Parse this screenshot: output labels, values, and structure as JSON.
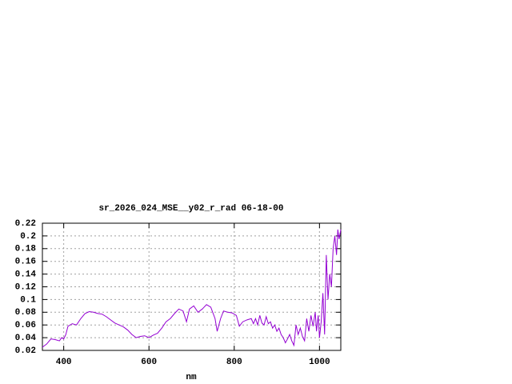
{
  "chart_data": {
    "type": "line",
    "title": "sr_2026_024_MSE__y02_r_rad 06-18-00",
    "x_label": "nm",
    "xlim": [
      350,
      1050
    ],
    "xticks": [
      400,
      600,
      800,
      1000
    ],
    "ylim": [
      0.02,
      0.22
    ],
    "yticks": [
      0.02,
      0.04,
      0.06,
      0.08,
      0.1,
      0.12,
      0.14,
      0.16,
      0.18,
      0.2,
      0.22
    ],
    "grid": true,
    "series": [
      {
        "color": "#9400d3",
        "x": [
          350,
          360,
          370,
          380,
          390,
          395,
          400,
          405,
          410,
          420,
          430,
          440,
          450,
          460,
          470,
          480,
          490,
          500,
          510,
          520,
          530,
          540,
          550,
          560,
          570,
          580,
          590,
          600,
          610,
          620,
          630,
          640,
          650,
          660,
          670,
          680,
          688,
          695,
          705,
          715,
          725,
          735,
          745,
          755,
          760,
          768,
          775,
          785,
          795,
          805,
          812,
          820,
          830,
          840,
          845,
          850,
          855,
          860,
          865,
          870,
          875,
          880,
          885,
          890,
          895,
          900,
          905,
          910,
          915,
          920,
          925,
          930,
          935,
          940,
          945,
          950,
          955,
          960,
          965,
          970,
          975,
          980,
          985,
          990,
          993,
          997,
          1000,
          1004,
          1008,
          1012,
          1016,
          1020,
          1024,
          1028,
          1032,
          1036,
          1040,
          1043,
          1046,
          1050
        ],
        "values": [
          0.025,
          0.03,
          0.038,
          0.037,
          0.035,
          0.04,
          0.038,
          0.045,
          0.058,
          0.062,
          0.06,
          0.07,
          0.078,
          0.081,
          0.08,
          0.078,
          0.077,
          0.073,
          0.068,
          0.063,
          0.06,
          0.057,
          0.052,
          0.045,
          0.04,
          0.042,
          0.043,
          0.04,
          0.044,
          0.047,
          0.055,
          0.065,
          0.07,
          0.078,
          0.085,
          0.082,
          0.065,
          0.085,
          0.09,
          0.08,
          0.085,
          0.092,
          0.088,
          0.07,
          0.05,
          0.07,
          0.082,
          0.08,
          0.079,
          0.075,
          0.058,
          0.065,
          0.068,
          0.07,
          0.062,
          0.07,
          0.06,
          0.075,
          0.063,
          0.06,
          0.073,
          0.062,
          0.065,
          0.055,
          0.06,
          0.05,
          0.055,
          0.045,
          0.04,
          0.032,
          0.038,
          0.045,
          0.035,
          0.028,
          0.06,
          0.045,
          0.055,
          0.042,
          0.035,
          0.07,
          0.05,
          0.075,
          0.058,
          0.08,
          0.05,
          0.075,
          0.04,
          0.065,
          0.11,
          0.045,
          0.17,
          0.1,
          0.14,
          0.12,
          0.18,
          0.2,
          0.17,
          0.21,
          0.195,
          0.21
        ]
      }
    ]
  }
}
